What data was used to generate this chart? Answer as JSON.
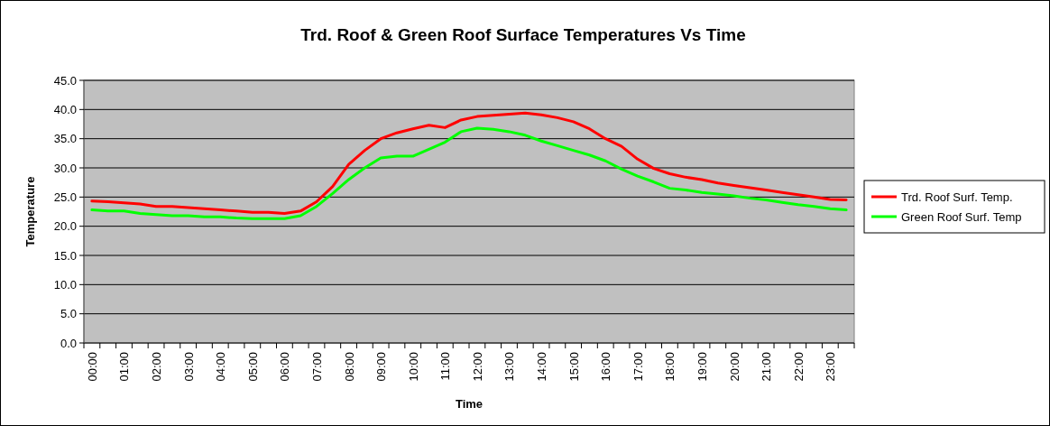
{
  "chart_data": {
    "type": "line",
    "title": "Trd. Roof & Green Roof Surface Temperatures Vs Time",
    "xlabel": "Time",
    "ylabel": "Temperature",
    "categories": [
      "00:00",
      null,
      "01:00",
      null,
      "02:00",
      null,
      "03:00",
      null,
      "04:00",
      null,
      "05:00",
      null,
      "06:00",
      null,
      "07:00",
      null,
      "08:00",
      null,
      "09:00",
      null,
      "10:00",
      null,
      "11:00",
      null,
      "12:00",
      null,
      "13:00",
      null,
      "14:00",
      null,
      "15:00",
      null,
      "16:00",
      null,
      "17:00",
      null,
      "18:00",
      null,
      "19:00",
      null,
      "20:00",
      null,
      "21:00",
      null,
      "22:00",
      null,
      "23:00",
      null
    ],
    "series": [
      {
        "name": "Trd. Roof Surf. Temp.",
        "color": "#ff0000",
        "values": [
          24.3,
          24.2,
          24.0,
          23.8,
          23.4,
          23.4,
          23.2,
          23.0,
          22.8,
          22.6,
          22.4,
          22.4,
          22.2,
          22.6,
          24.2,
          26.8,
          30.6,
          33.0,
          35.0,
          36.0,
          36.7,
          37.3,
          36.9,
          38.2,
          38.8,
          39.0,
          39.2,
          39.4,
          39.1,
          38.6,
          37.9,
          36.7,
          35.0,
          33.7,
          31.5,
          29.9,
          29.0,
          28.4,
          28.0,
          27.4,
          27.0,
          26.6,
          26.2,
          25.8,
          25.4,
          25.0,
          24.6,
          24.5
        ]
      },
      {
        "name": "Green Roof Surf. Temp",
        "color": "#00ff00",
        "values": [
          22.8,
          22.6,
          22.6,
          22.2,
          22.0,
          21.8,
          21.8,
          21.6,
          21.6,
          21.4,
          21.3,
          21.3,
          21.3,
          21.8,
          23.4,
          25.6,
          28.0,
          30.0,
          31.7,
          32.0,
          32.0,
          33.2,
          34.4,
          36.2,
          36.8,
          36.6,
          36.2,
          35.6,
          34.6,
          33.8,
          33.0,
          32.2,
          31.2,
          29.8,
          28.6,
          27.6,
          26.5,
          26.2,
          25.8,
          25.5,
          25.2,
          24.8,
          24.5,
          24.1,
          23.7,
          23.4,
          23.0,
          22.8
        ]
      }
    ],
    "ylim": [
      0,
      45
    ],
    "yticks": [
      {
        "value": 0,
        "label": "0.0"
      },
      {
        "value": 5,
        "label": "5.0"
      },
      {
        "value": 10,
        "label": "10.0"
      },
      {
        "value": 15,
        "label": "15.0"
      },
      {
        "value": 20,
        "label": "20.0"
      },
      {
        "value": 25,
        "label": "25.0"
      },
      {
        "value": 30,
        "label": "30.0"
      },
      {
        "value": 35,
        "label": "35.0"
      },
      {
        "value": 40,
        "label": "40.0"
      },
      {
        "value": 45,
        "label": "45.0"
      }
    ],
    "grid": "y",
    "legend": "right",
    "marker": "none",
    "line_style": "solid"
  }
}
